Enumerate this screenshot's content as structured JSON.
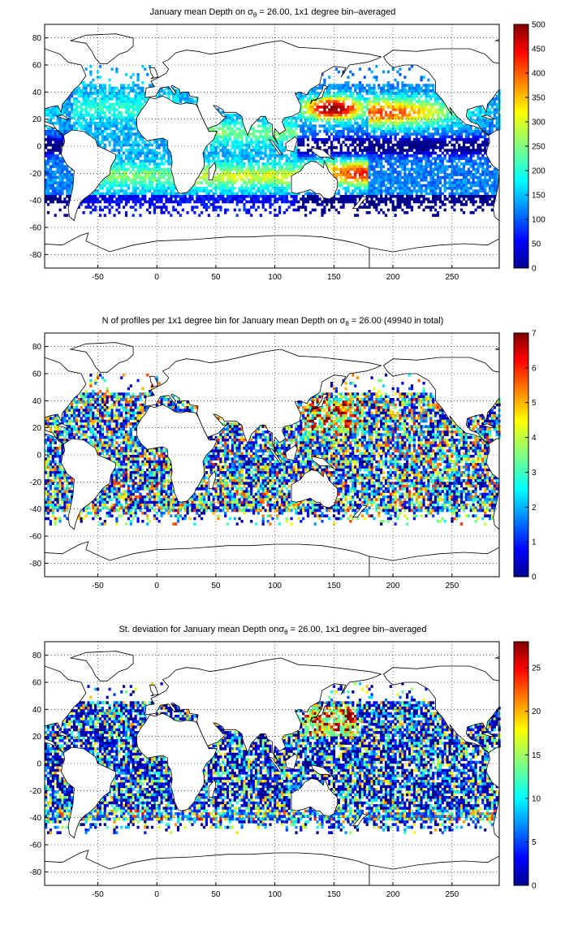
{
  "colormap": "jet",
  "chart_data": [
    {
      "type": "heatmap",
      "title": "January mean Depth on σ_θ = 26.00, 1x1 degree bin–averaged",
      "title_parts": [
        "January mean Depth on σ",
        "θ",
        " = 26.00, 1x1 degree bin–averaged"
      ],
      "xlabel": "",
      "ylabel": "",
      "xlim": [
        -95,
        290
      ],
      "ylim": [
        -90,
        90
      ],
      "xticks": [
        -50,
        0,
        50,
        100,
        150,
        200,
        250
      ],
      "yticks": [
        80,
        60,
        40,
        20,
        0,
        -20,
        -40,
        -60,
        -80
      ],
      "grid": true,
      "colorbar": {
        "range": [
          0,
          500
        ],
        "ticks": [
          0,
          50,
          100,
          150,
          200,
          250,
          300,
          350,
          400,
          450,
          500
        ]
      },
      "field": "mean_depth"
    },
    {
      "type": "heatmap",
      "title": "N of profiles per 1x1 degree bin for January mean Depth on σ_θ = 26.00 (49940 in total)",
      "title_parts": [
        "N of profiles per 1x1 degree bin for January mean Depth on σ",
        "θ",
        " = 26.00 (49940 in total)"
      ],
      "xlabel": "",
      "ylabel": "",
      "xlim": [
        -95,
        290
      ],
      "ylim": [
        -90,
        90
      ],
      "xticks": [
        -50,
        0,
        50,
        100,
        150,
        200,
        250
      ],
      "yticks": [
        80,
        60,
        40,
        20,
        0,
        -20,
        -40,
        -60,
        -80
      ],
      "grid": true,
      "colorbar": {
        "range": [
          0,
          7
        ],
        "ticks": [
          0,
          1,
          2,
          3,
          4,
          5,
          6,
          7
        ]
      },
      "field": "profile_count"
    },
    {
      "type": "heatmap",
      "title": "St. deviation for January mean Depth onσ_θ = 26.00, 1x1 degree bin–averaged",
      "title_parts": [
        "St. deviation for January mean Depth onσ",
        "θ",
        " = 26.00, 1x1 degree bin–averaged"
      ],
      "xlabel": "",
      "ylabel": "",
      "xlim": [
        -95,
        290
      ],
      "ylim": [
        -90,
        90
      ],
      "xticks": [
        -50,
        0,
        50,
        100,
        150,
        200,
        250
      ],
      "yticks": [
        80,
        60,
        40,
        20,
        0,
        -20,
        -40,
        -60,
        -80
      ],
      "grid": true,
      "colorbar": {
        "range": [
          0,
          28
        ],
        "ticks": [
          0,
          5,
          10,
          15,
          20,
          25
        ]
      },
      "field": "std_depth"
    }
  ]
}
